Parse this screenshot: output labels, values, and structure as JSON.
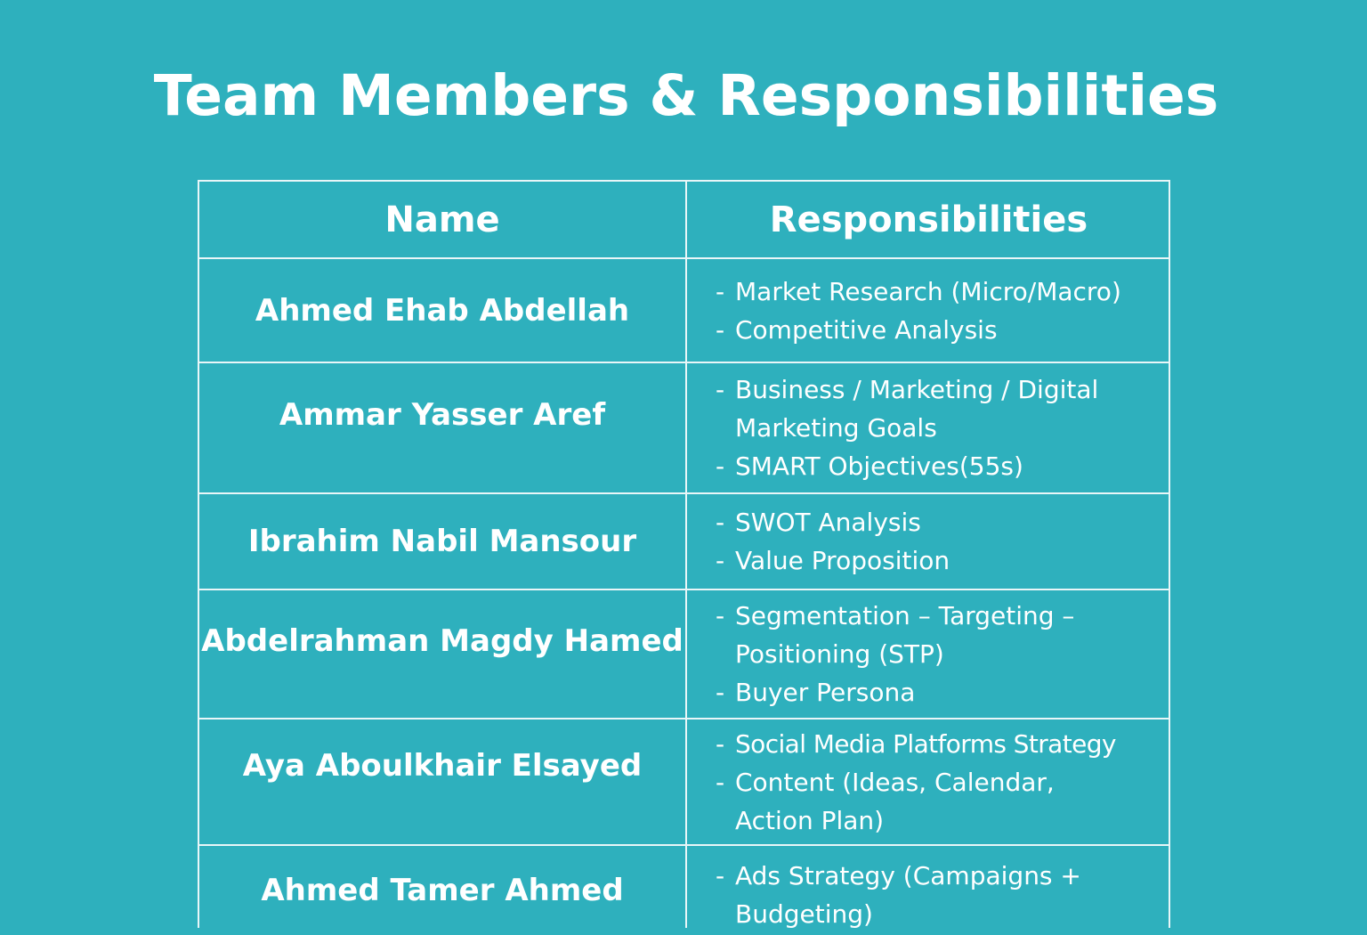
{
  "title": "Team Members & Responsibilities",
  "table": {
    "headers": {
      "name": "Name",
      "responsibilities": "Responsibilities"
    },
    "bullet": "-",
    "rows": [
      {
        "name": "Ahmed Ehab Abdellah",
        "responsibilities": [
          "Market Research (Micro/Macro)",
          "Competitive Analysis"
        ]
      },
      {
        "name": "Ammar Yasser Aref",
        "responsibilities": [
          "Business / Marketing / Digital Marketing Goals",
          "SMART Objectives(55s)"
        ]
      },
      {
        "name": "Ibrahim Nabil Mansour",
        "responsibilities": [
          "SWOT Analysis",
          "Value Proposition"
        ]
      },
      {
        "name": "Abdelrahman Magdy Hamed",
        "responsibilities": [
          "Segmentation – Targeting – Positioning (STP)",
          "Buyer Persona"
        ]
      },
      {
        "name": "Aya Aboulkhair Elsayed",
        "responsibilities": [
          "Social Media Platforms Strategy",
          "Content (Ideas, Calendar, Action Plan)"
        ]
      },
      {
        "name": "Ahmed Tamer Ahmed",
        "responsibilities": [
          "Ads Strategy (Campaigns + Budgeting)"
        ]
      }
    ]
  },
  "colors": {
    "background": "#2eb0bd",
    "text": "#ffffff",
    "grid_lines": "#e8f6f8"
  }
}
